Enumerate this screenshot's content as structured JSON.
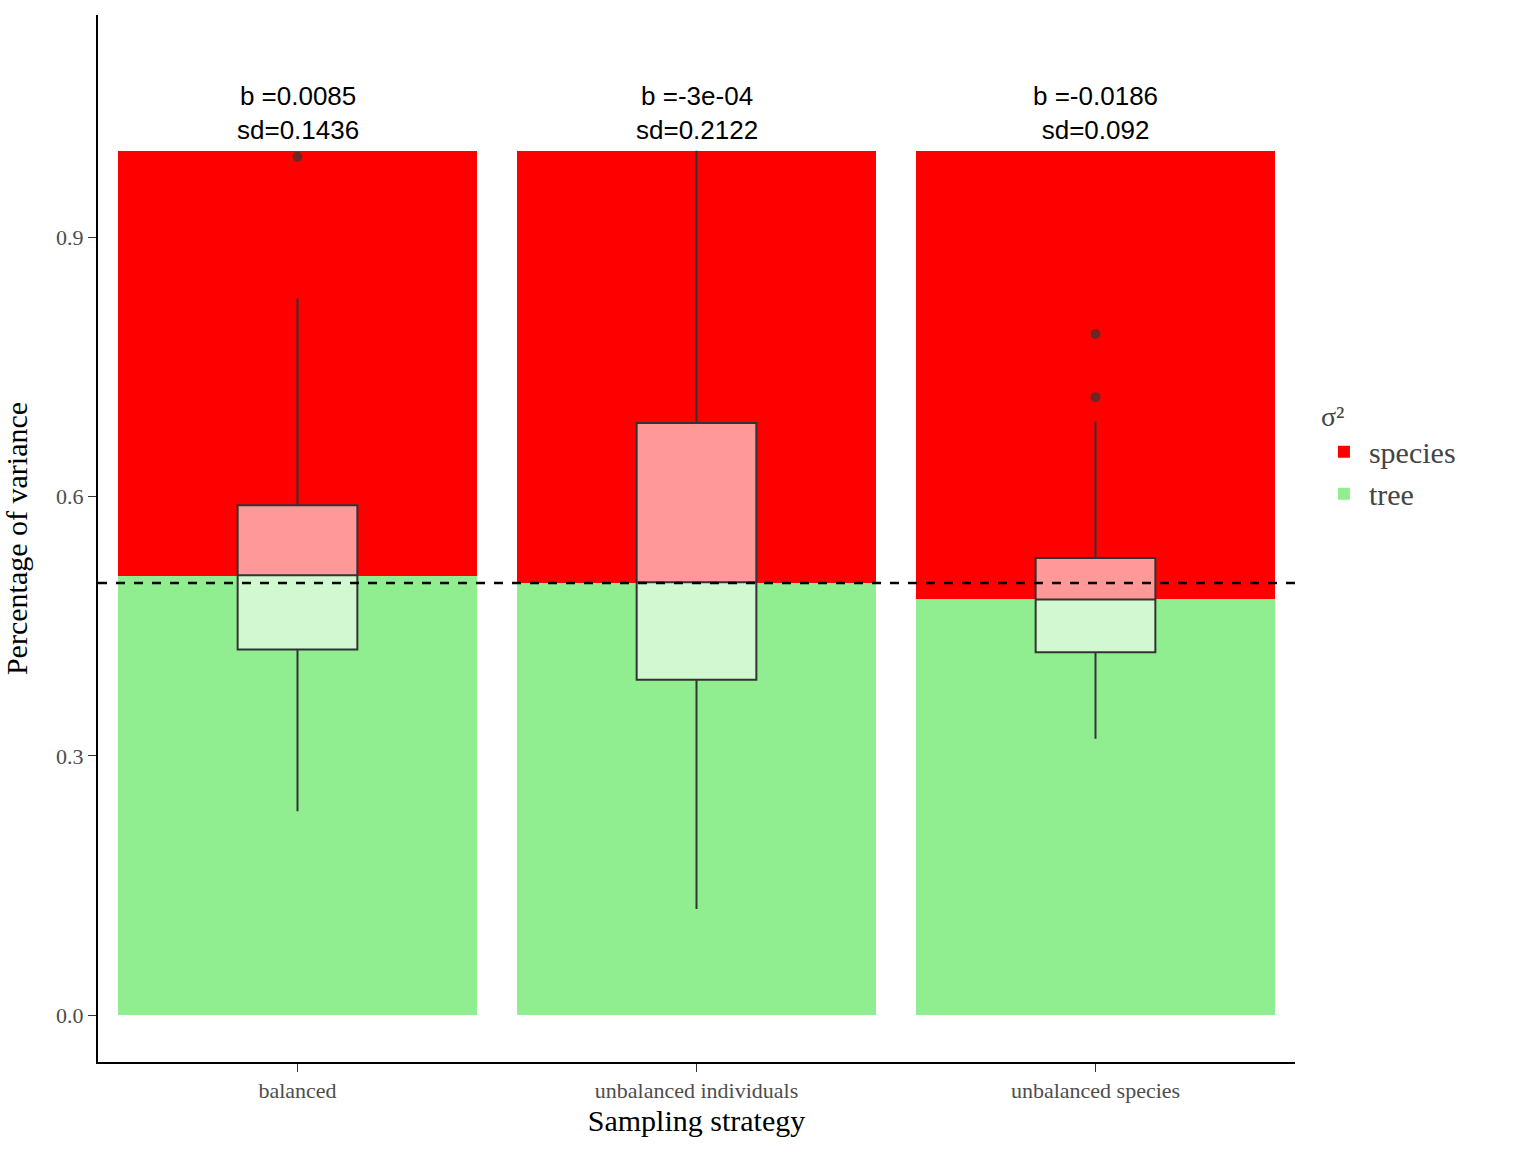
{
  "chart_data": {
    "type": "bar",
    "stacked": true,
    "x_label": "Sampling strategy",
    "y_label": "Percentage of variance",
    "legend_title": "σ²",
    "legend": "right",
    "grid": false,
    "categories": [
      "balanced",
      "unbalanced individuals",
      "unbalanced species"
    ],
    "series": [
      {
        "name": "species",
        "color": "#ff0000",
        "values": [
          0.4915,
          0.5003,
          0.5186
        ]
      },
      {
        "name": "tree",
        "color": "#90ee90",
        "values": [
          0.5085,
          0.4997,
          0.4814
        ]
      }
    ],
    "boxes": [
      {
        "q1": 0.423,
        "median": 0.509,
        "q3": 0.59,
        "lowerfence": 0.236,
        "upperfence": 0.829,
        "outliers": [
          0.993
        ]
      },
      {
        "q1": 0.388,
        "median": 0.501,
        "q3": 0.685,
        "lowerfence": 0.123,
        "upperfence": 1.0,
        "outliers": []
      },
      {
        "q1": 0.42,
        "median": 0.481,
        "q3": 0.529,
        "lowerfence": 0.32,
        "upperfence": 0.687,
        "outliers": [
          0.788,
          0.715
        ]
      }
    ],
    "hline": 0.5,
    "annotations": [
      [
        "b =0.0085",
        "sd=0.1436"
      ],
      [
        "b =-3e-04",
        "sd=0.2122"
      ],
      [
        "b =-0.0186",
        "sd=0.092"
      ]
    ],
    "ylim": [
      -0.054,
      1.157
    ],
    "yticks": [
      {
        "value": 0,
        "label": "0.0"
      },
      {
        "value": 0.3,
        "label": "0.3"
      },
      {
        "value": 0.6,
        "label": "0.6"
      },
      {
        "value": 0.9,
        "label": "0.9"
      }
    ]
  }
}
